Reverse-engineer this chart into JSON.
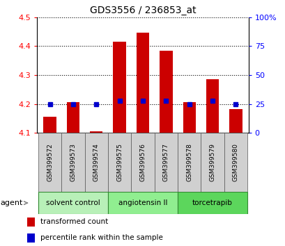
{
  "title": "GDS3556 / 236853_at",
  "samples": [
    "GSM399572",
    "GSM399573",
    "GSM399574",
    "GSM399575",
    "GSM399576",
    "GSM399577",
    "GSM399578",
    "GSM399579",
    "GSM399580"
  ],
  "transformed_counts": [
    4.155,
    4.205,
    4.105,
    4.415,
    4.447,
    4.385,
    4.205,
    4.285,
    4.183
  ],
  "percentile_ranks": [
    25,
    25,
    25,
    28,
    28,
    28,
    25,
    28,
    25
  ],
  "groups": [
    {
      "label": "solvent control",
      "samples": [
        0,
        1,
        2
      ],
      "color": "#b8f0b8"
    },
    {
      "label": "angiotensin II",
      "samples": [
        3,
        4,
        5
      ],
      "color": "#90ee90"
    },
    {
      "label": "torcetrapib",
      "samples": [
        6,
        7,
        8
      ],
      "color": "#5cd65c"
    }
  ],
  "ylim_left": [
    4.1,
    4.5
  ],
  "ylim_right": [
    0,
    100
  ],
  "yticks_left": [
    4.1,
    4.2,
    4.3,
    4.4,
    4.5
  ],
  "yticks_right": [
    0,
    25,
    50,
    75,
    100
  ],
  "bar_color": "#cc0000",
  "dot_color": "#0000cc",
  "bar_width": 0.55,
  "background_color": "#ffffff",
  "plot_bg_color": "#ffffff",
  "legend_items": [
    "transformed count",
    "percentile rank within the sample"
  ],
  "figsize": [
    4.1,
    3.54
  ],
  "dpi": 100
}
